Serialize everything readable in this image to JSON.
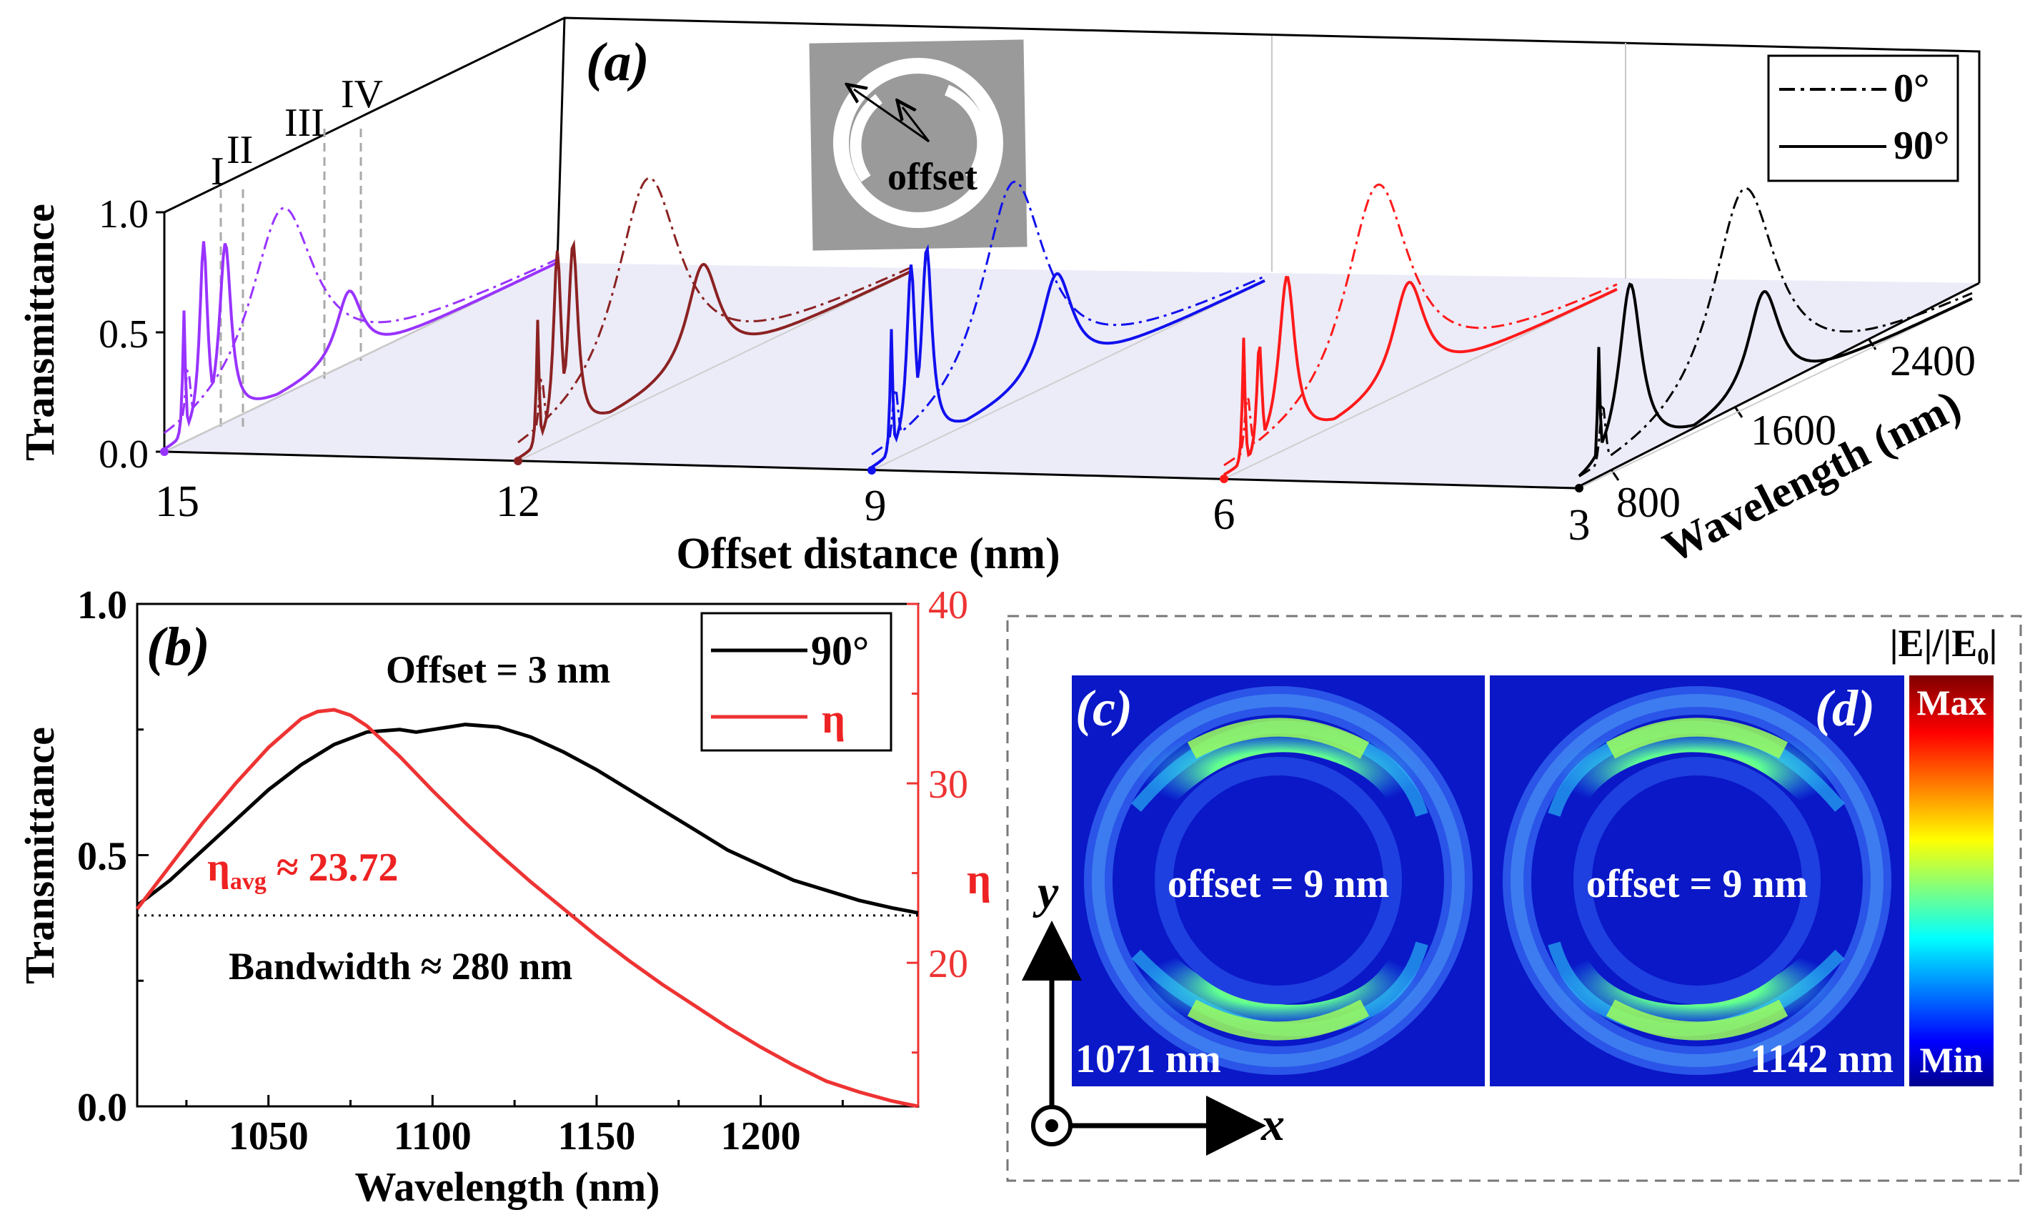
{
  "chart_data": [
    {
      "id": "a",
      "type": "line",
      "panel_label": "a",
      "zlabel": "Transmittance",
      "zticks": [
        "0.0",
        "0.5",
        "1.0"
      ],
      "xlabel": "Offset distance (nm)",
      "offsets": [
        "15",
        "12",
        "9",
        "6",
        "3"
      ],
      "ylabel": "Wavelength (nm)",
      "yticks": [
        "800",
        "1600",
        "2400"
      ],
      "legend": [
        {
          "label": "0°",
          "style": "dash-dot"
        },
        {
          "label": "90°",
          "style": "solid"
        }
      ],
      "inset_label": "offset",
      "mode_labels": [
        "I",
        "II",
        "III",
        "IV"
      ],
      "series": [
        {
          "offset": 15,
          "color": "#9933ff",
          "solid_peaks": [
            [
              0.05,
              0.55,
              0.004
            ],
            [
              0.1,
              0.8,
              0.012
            ],
            [
              0.155,
              0.75,
              0.018
            ],
            [
              0.47,
              0.3,
              0.04
            ]
          ],
          "dash_peaks": [
            [
              0.06,
              0.3,
              0.01
            ],
            [
              0.3,
              0.78,
              0.1
            ]
          ]
        },
        {
          "offset": 12,
          "color": "#8b2222",
          "solid_peaks": [
            [
              0.05,
              0.55,
              0.004
            ],
            [
              0.1,
              0.8,
              0.012
            ],
            [
              0.14,
              0.8,
              0.015
            ],
            [
              0.47,
              0.45,
              0.05
            ]
          ],
          "dash_peaks": [
            [
              0.06,
              0.3,
              0.01
            ],
            [
              0.33,
              0.92,
              0.1
            ]
          ]
        },
        {
          "offset": 9,
          "color": "#1010ee",
          "solid_peaks": [
            [
              0.05,
              0.55,
              0.004
            ],
            [
              0.1,
              0.78,
              0.013
            ],
            [
              0.14,
              0.82,
              0.016
            ],
            [
              0.47,
              0.45,
              0.05
            ]
          ],
          "dash_peaks": [
            [
              0.06,
              0.3,
              0.01
            ],
            [
              0.36,
              0.92,
              0.1
            ]
          ]
        },
        {
          "offset": 6,
          "color": "#ff1a1a",
          "solid_peaks": [
            [
              0.05,
              0.55,
              0.004
            ],
            [
              0.09,
              0.5,
              0.008
            ],
            [
              0.16,
              0.72,
              0.025
            ],
            [
              0.47,
              0.45,
              0.05
            ]
          ],
          "dash_peaks": [
            [
              0.06,
              0.3,
              0.01
            ],
            [
              0.39,
              0.92,
              0.1
            ]
          ]
        },
        {
          "offset": 3,
          "color": "#000000",
          "solid_peaks": [
            [
              0.05,
              0.55,
              0.004
            ],
            [
              0.13,
              0.75,
              0.035
            ],
            [
              0.47,
              0.45,
              0.05
            ]
          ],
          "dash_peaks": [
            [
              0.06,
              0.3,
              0.01
            ],
            [
              0.42,
              0.92,
              0.1
            ]
          ]
        }
      ]
    },
    {
      "id": "b",
      "type": "line",
      "panel_label": "b",
      "xlabel": "Wavelength (nm)",
      "ylabel": "Transmittance",
      "ylabel_right": "η",
      "xlim": [
        1010,
        1248
      ],
      "ylim": [
        0.0,
        1.0
      ],
      "ylim_right": [
        12,
        40
      ],
      "xticks": [
        "1050",
        "1100",
        "1150",
        "1200"
      ],
      "yticks": [
        "0.0",
        "0.5",
        "1.0"
      ],
      "yticks_right": [
        "20",
        "30",
        "40"
      ],
      "series": [
        {
          "name": "90°",
          "color": "#000000",
          "axis": "left",
          "x": [
            1010,
            1020,
            1030,
            1040,
            1050,
            1060,
            1070,
            1080,
            1090,
            1095,
            1100,
            1110,
            1120,
            1130,
            1140,
            1150,
            1160,
            1170,
            1180,
            1190,
            1200,
            1210,
            1220,
            1230,
            1240,
            1248
          ],
          "y": [
            0.4,
            0.45,
            0.51,
            0.57,
            0.63,
            0.68,
            0.72,
            0.745,
            0.75,
            0.745,
            0.75,
            0.76,
            0.755,
            0.735,
            0.705,
            0.67,
            0.63,
            0.59,
            0.55,
            0.51,
            0.48,
            0.45,
            0.43,
            0.41,
            0.395,
            0.385
          ]
        },
        {
          "name": "η",
          "color": "#ee3333",
          "axis": "right",
          "x": [
            1010,
            1020,
            1030,
            1040,
            1050,
            1060,
            1065,
            1070,
            1075,
            1080,
            1090,
            1100,
            1110,
            1120,
            1130,
            1140,
            1150,
            1160,
            1170,
            1180,
            1190,
            1200,
            1210,
            1220,
            1230,
            1240,
            1248
          ],
          "y": [
            23.0,
            25.4,
            27.8,
            30.0,
            32.0,
            33.6,
            34.0,
            34.1,
            33.8,
            33.2,
            31.5,
            29.6,
            27.8,
            26.1,
            24.5,
            23.0,
            21.5,
            20.1,
            18.8,
            17.6,
            16.4,
            15.3,
            14.3,
            13.4,
            12.8,
            12.3,
            12.0
          ]
        }
      ],
      "legend": [
        {
          "label": "90°",
          "color": "#000000"
        },
        {
          "label": "η",
          "color": "#ee3333"
        }
      ],
      "annotations": {
        "offset": "Offset = 3 nm",
        "eta_symbol": "η",
        "eta_sub": "avg",
        "eta_value": "≈  23.72",
        "bandwidth": "Bandwidth ≈ 280 nm",
        "dotted_level": 0.38
      }
    },
    {
      "id": "c-d",
      "type": "heatmap",
      "colorbar_title": "|E|/|E₀|",
      "colorbar_max": "Max",
      "colorbar_min": "Min",
      "axis_y": "y",
      "axis_x": "x",
      "maps": [
        {
          "panel_label": "c",
          "offset_text": "offset = 9 nm",
          "wavelength": "1071 nm"
        },
        {
          "panel_label": "d",
          "offset_text": "offset = 9 nm",
          "wavelength": "1142 nm"
        }
      ]
    }
  ]
}
